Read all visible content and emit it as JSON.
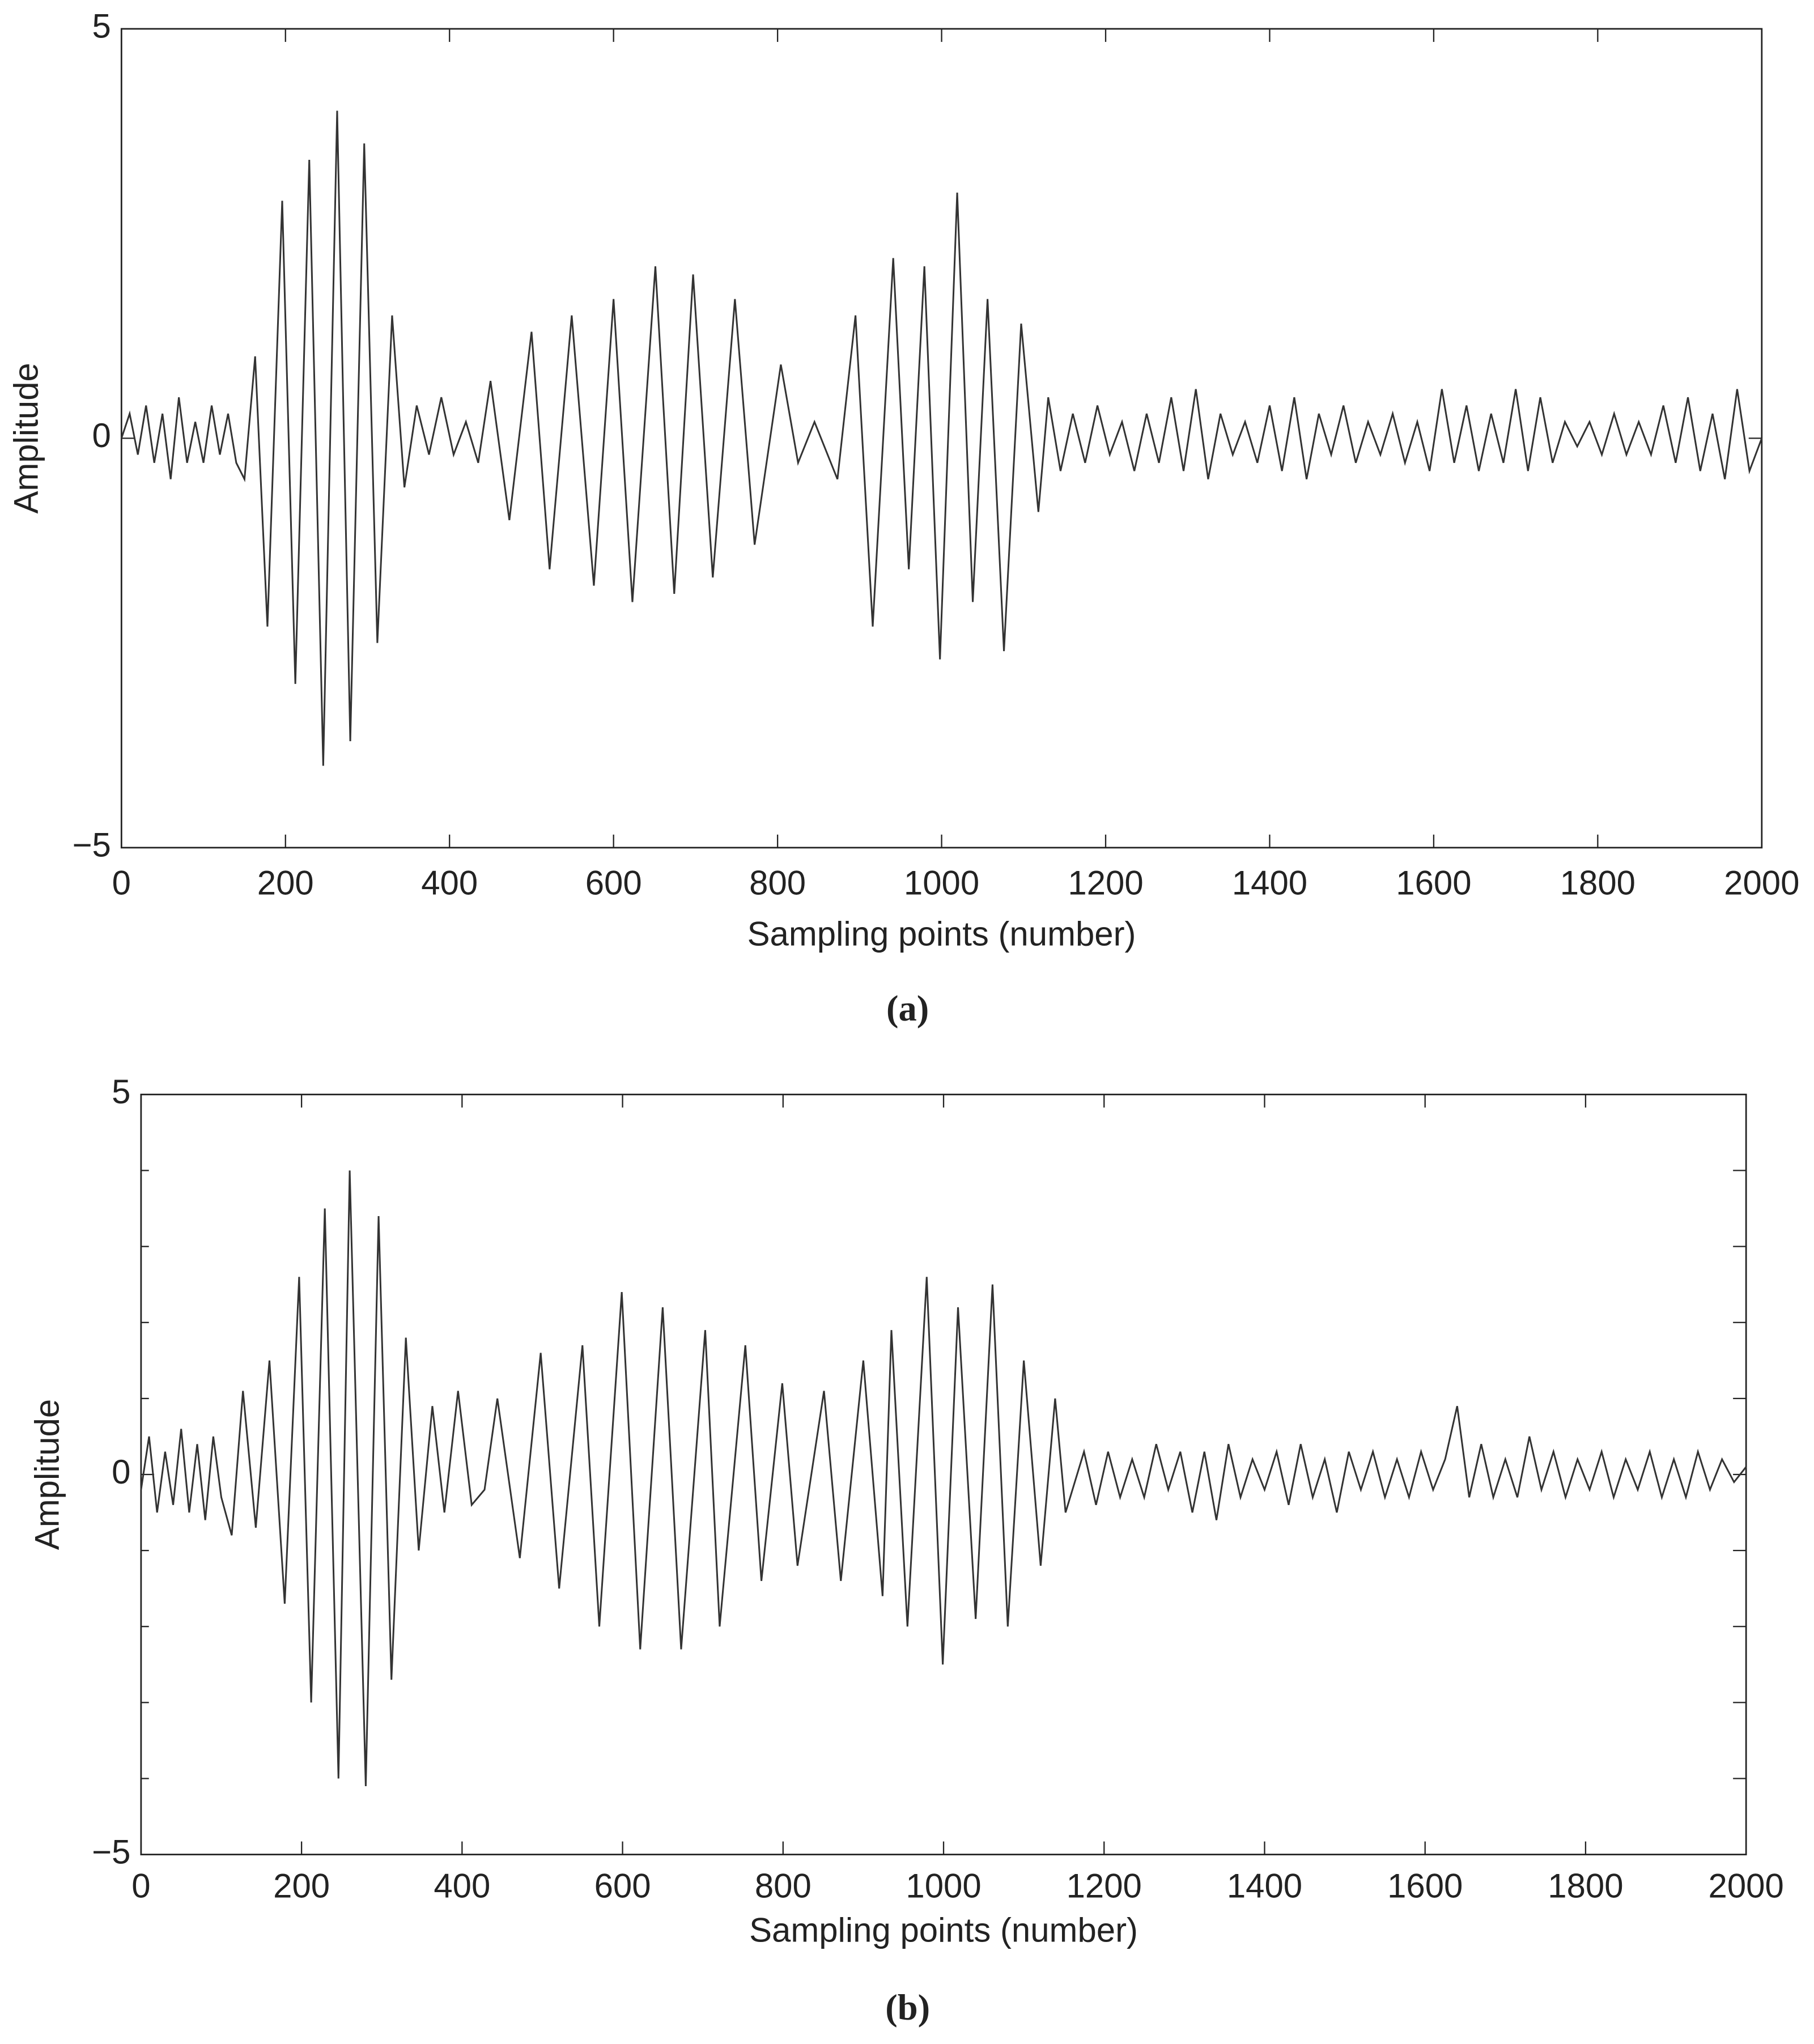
{
  "chart_data": [
    {
      "type": "line",
      "caption": "(a)",
      "xlabel": "Sampling points (number)",
      "ylabel": "Amplitude",
      "color": "#333333",
      "xlim": [
        0,
        2000
      ],
      "ylim": [
        -5,
        5
      ],
      "xticks": [
        0,
        200,
        400,
        600,
        800,
        1000,
        1200,
        1400,
        1600,
        1800,
        2000
      ],
      "yticks": [
        {
          "value": -5,
          "label": "−5"
        },
        0,
        5
      ],
      "x": [
        0,
        10,
        20,
        30,
        40,
        50,
        60,
        70,
        80,
        90,
        100,
        110,
        120,
        130,
        140,
        150,
        163,
        178,
        196,
        212,
        229,
        246,
        263,
        279,
        296,
        312,
        330,
        345,
        360,
        375,
        390,
        405,
        420,
        435,
        450,
        473,
        500,
        522,
        549,
        576,
        600,
        623,
        651,
        674,
        697,
        721,
        748,
        772,
        804,
        825,
        845,
        873,
        895,
        916,
        941,
        960,
        979,
        998,
        1019,
        1038,
        1056,
        1076,
        1097,
        1118,
        1130,
        1145,
        1160,
        1175,
        1190,
        1205,
        1220,
        1235,
        1250,
        1265,
        1280,
        1295,
        1310,
        1325,
        1340,
        1355,
        1370,
        1385,
        1400,
        1415,
        1430,
        1445,
        1460,
        1475,
        1490,
        1505,
        1520,
        1535,
        1550,
        1565,
        1580,
        1595,
        1610,
        1625,
        1640,
        1655,
        1670,
        1685,
        1700,
        1715,
        1730,
        1745,
        1760,
        1775,
        1790,
        1805,
        1820,
        1835,
        1850,
        1865,
        1880,
        1895,
        1910,
        1925,
        1940,
        1955,
        1970,
        1985,
        2000
      ],
      "values": [
        0,
        0.3,
        -0.2,
        0.4,
        -0.3,
        0.3,
        -0.5,
        0.5,
        -0.3,
        0.2,
        -0.3,
        0.4,
        -0.2,
        0.3,
        -0.3,
        -0.5,
        1.0,
        -2.3,
        2.9,
        -3.0,
        3.4,
        -4.0,
        4.0,
        -3.7,
        3.6,
        -2.5,
        1.5,
        -0.6,
        0.4,
        -0.2,
        0.5,
        -0.2,
        0.2,
        -0.3,
        0.7,
        -1.0,
        1.3,
        -1.6,
        1.5,
        -1.8,
        1.7,
        -2.0,
        2.1,
        -1.9,
        2.0,
        -1.7,
        1.7,
        -1.3,
        0.9,
        -0.3,
        0.2,
        -0.5,
        1.5,
        -2.3,
        2.2,
        -1.6,
        2.1,
        -2.7,
        3.0,
        -2.0,
        1.7,
        -2.6,
        1.4,
        -0.9,
        0.5,
        -0.4,
        0.3,
        -0.3,
        0.4,
        -0.2,
        0.2,
        -0.4,
        0.3,
        -0.3,
        0.5,
        -0.4,
        0.6,
        -0.5,
        0.3,
        -0.2,
        0.2,
        -0.3,
        0.4,
        -0.4,
        0.5,
        -0.5,
        0.3,
        -0.2,
        0.4,
        -0.3,
        0.2,
        -0.2,
        0.3,
        -0.3,
        0.2,
        -0.4,
        0.6,
        -0.3,
        0.4,
        -0.4,
        0.3,
        -0.3,
        0.6,
        -0.4,
        0.5,
        -0.3,
        0.2,
        -0.1,
        0.2,
        -0.2,
        0.3,
        -0.2,
        0.2,
        -0.2,
        0.4,
        -0.3,
        0.5,
        -0.4,
        0.3,
        -0.5,
        0.6,
        -0.4,
        0.0
      ]
    },
    {
      "type": "line",
      "caption": "(b)",
      "xlabel": "Sampling points (number)",
      "ylabel": "Amplitude",
      "color": "#333333",
      "xlim": [
        0,
        2000
      ],
      "ylim": [
        -5,
        5
      ],
      "xticks": [
        0,
        200,
        400,
        600,
        800,
        1000,
        1200,
        1400,
        1600,
        1800,
        2000
      ],
      "yticks": [
        {
          "value": -5,
          "label": "−5"
        },
        0,
        5
      ],
      "y_minor_ticks": [
        -4,
        -3,
        -2,
        -1,
        1,
        2,
        3,
        4
      ],
      "x": [
        0,
        10,
        20,
        30,
        40,
        50,
        60,
        70,
        80,
        90,
        100,
        113,
        127,
        143,
        160,
        179,
        197,
        212,
        229,
        246,
        260,
        280,
        296,
        312,
        330,
        346,
        363,
        378,
        395,
        412,
        428,
        444,
        472,
        498,
        521,
        550,
        571,
        599,
        622,
        650,
        673,
        703,
        721,
        753,
        773,
        799,
        818,
        851,
        872,
        900,
        924,
        935,
        955,
        979,
        999,
        1018,
        1040,
        1061,
        1080,
        1100,
        1121,
        1139,
        1152,
        1175,
        1190,
        1205,
        1220,
        1235,
        1250,
        1265,
        1280,
        1295,
        1310,
        1325,
        1340,
        1355,
        1370,
        1385,
        1400,
        1415,
        1430,
        1445,
        1460,
        1475,
        1490,
        1505,
        1520,
        1535,
        1550,
        1565,
        1580,
        1595,
        1610,
        1625,
        1640,
        1655,
        1670,
        1685,
        1700,
        1715,
        1730,
        1745,
        1760,
        1775,
        1790,
        1805,
        1820,
        1835,
        1850,
        1865,
        1880,
        1895,
        1910,
        1925,
        1940,
        1955,
        1970,
        1985,
        2000
      ],
      "values": [
        -0.2,
        0.5,
        -0.5,
        0.3,
        -0.4,
        0.6,
        -0.5,
        0.4,
        -0.6,
        0.5,
        -0.3,
        -0.8,
        1.1,
        -0.7,
        1.5,
        -1.7,
        2.6,
        -3.0,
        3.5,
        -4.0,
        4.0,
        -4.1,
        3.4,
        -2.7,
        1.8,
        -1.0,
        0.9,
        -0.5,
        1.1,
        -0.4,
        -0.2,
        1.0,
        -1.1,
        1.6,
        -1.5,
        1.7,
        -2.0,
        2.4,
        -2.3,
        2.2,
        -2.3,
        1.9,
        -2.0,
        1.7,
        -1.4,
        1.2,
        -1.2,
        1.1,
        -1.4,
        1.5,
        -1.6,
        1.9,
        -2.0,
        2.6,
        -2.5,
        2.2,
        -1.9,
        2.5,
        -2.0,
        1.5,
        -1.2,
        1.0,
        -0.5,
        0.3,
        -0.4,
        0.3,
        -0.3,
        0.2,
        -0.3,
        0.4,
        -0.2,
        0.3,
        -0.5,
        0.3,
        -0.6,
        0.4,
        -0.3,
        0.2,
        -0.2,
        0.3,
        -0.4,
        0.4,
        -0.3,
        0.2,
        -0.5,
        0.3,
        -0.2,
        0.3,
        -0.3,
        0.2,
        -0.3,
        0.3,
        -0.2,
        0.2,
        0.9,
        -0.3,
        0.4,
        -0.3,
        0.2,
        -0.3,
        0.5,
        -0.2,
        0.3,
        -0.3,
        0.2,
        -0.2,
        0.3,
        -0.3,
        0.2,
        -0.2,
        0.3,
        -0.3,
        0.2,
        -0.3,
        0.3,
        -0.2,
        0.2,
        -0.1,
        0.1
      ]
    }
  ]
}
